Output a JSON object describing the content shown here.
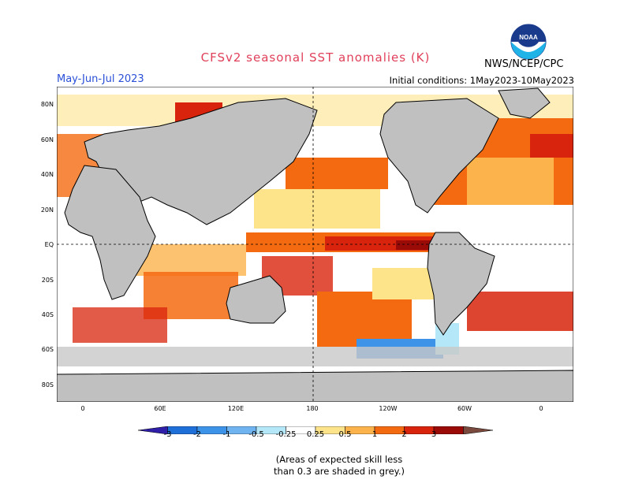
{
  "title": "CFSv2 seasonal SST anomalies (K)",
  "season": "May-Jun-Jul 2023",
  "initial_conditions": "Initial conditions:  1May2023-10May2023",
  "org": "NWS/NCEP/CPC",
  "logo_text": "NOAA",
  "lat_labels": [
    "80N",
    "60N",
    "40N",
    "20N",
    "EQ",
    "20S",
    "40S",
    "60S",
    "80S"
  ],
  "lon_labels": [
    "0",
    "60E",
    "120E",
    "180",
    "120W",
    "60W",
    "0"
  ],
  "colorbar": {
    "labels": [
      "-3",
      "-2",
      "-1",
      "-0.5",
      "-0.25",
      "0.25",
      "0.5",
      "1",
      "2",
      "3"
    ],
    "colors": [
      "#2e1ea8",
      "#1f6fd8",
      "#3c93e8",
      "#6fb4f0",
      "#b4e8f8",
      "#ffffff",
      "#fde38a",
      "#fcb34c",
      "#f46a10",
      "#d8240c",
      "#9a0a06",
      "#7a4a3e"
    ]
  },
  "note": [
    "(Areas of expected skill less",
    "than 0.3 are shaded in grey.)"
  ],
  "colors": {
    "title": "#e0405a",
    "season": "#2a4fd8",
    "land": "#c0c0c0",
    "low_skill": "#c8c8c8"
  }
}
